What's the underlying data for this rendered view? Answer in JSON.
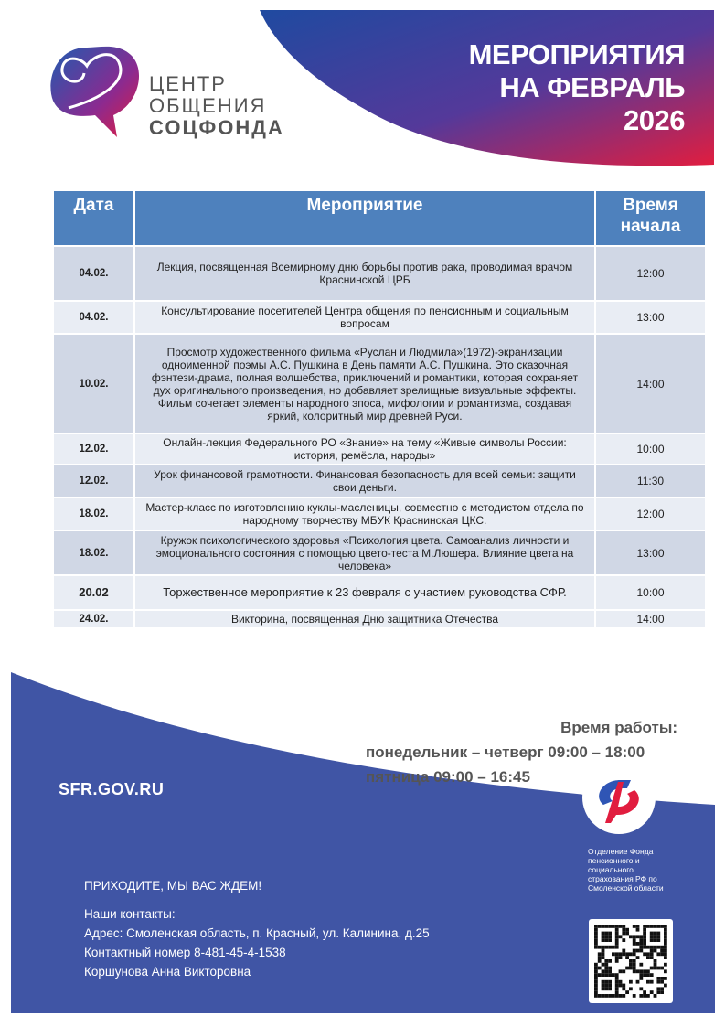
{
  "header": {
    "logo_lines": [
      "ЦЕНТР",
      "ОБЩЕНИЯ",
      "СОЦФОНДА"
    ],
    "title_lines": [
      "МЕРОПРИЯТИЯ",
      "НА ФЕВРАЛЬ",
      "2026"
    ]
  },
  "table": {
    "columns": [
      "Дата",
      "Мероприятие",
      "Время начала"
    ],
    "rows": [
      {
        "date": "04.02.",
        "event": "Лекция, посвященная Всемирному дню борьбы против рака, проводимая врачом Краснинской ЦРБ",
        "time": "12:00"
      },
      {
        "date": "04.02.",
        "event": "Консультирование посетителей Центра общения по пенсионным и социальным вопросам",
        "time": "13:00"
      },
      {
        "date": "10.02.",
        "event": "Просмотр художественного фильма «Руслан и Людмила»(1972)-экранизации одноименной поэмы А.С. Пушкина в День памяти А.С. Пушкина. Это сказочная фэнтези-драма, полная волшебства, приключений и романтики, которая сохраняет дух оригинального произведения, но добавляет зрелищные визуальные эффекты. Фильм сочетает элементы народного эпоса, мифологии и романтизма, создавая яркий, колоритный мир древней Руси.",
        "time": "14:00"
      },
      {
        "date": "12.02.",
        "event": "Онлайн-лекция Федерального РО «Знание» на тему «Живые символы России: история, ремёсла, народы»",
        "time": "10:00"
      },
      {
        "date": "12.02.",
        "event": "Урок финансовой грамотности. Финансовая безопасность для всей семьи: защити свои деньги.",
        "time": "11:30"
      },
      {
        "date": "18.02.",
        "event": "Мастер-класс по изготовлению куклы-масленицы, совместно с методистом отдела по народному творчеству МБУК Краснинская ЦКС.",
        "time": "12:00"
      },
      {
        "date": "18.02.",
        "event": "Кружок психологического здоровья «Психология цвета. Самоанализ личности и эмоционального состояния с помощью цвето-теста М.Люшера. Влияние цвета на человека»",
        "time": "13:00"
      },
      {
        "date": "20.02",
        "event": "Торжественное мероприятие к 23 февраля с участием руководства СФР.",
        "time": "10:00"
      },
      {
        "date": "24.02.",
        "event": "Викторина, посвященная Дню защитника Отечества",
        "time": "14:00"
      }
    ]
  },
  "hours": {
    "title": "Время работы:",
    "line1": "понедельник – четверг 09:00 – 18:00",
    "line2": "пятница 09:00 – 16:45"
  },
  "footer": {
    "site": "SFR.GOV.RU",
    "org": "Отделение Фонда пенсионного и социального страхования РФ по Смоленской области",
    "invite": "ПРИХОДИТЕ, МЫ ВАС ЖДЕМ!",
    "contacts_label": "Наши контакты:",
    "address": "Адрес: Смоленская область, п. Красный, ул. Калинина, д.25",
    "phone": "Контактный номер 8-481-45-4-1538",
    "person": "Коршунова Анна Викторовна"
  },
  "colors": {
    "header_blue": "#4e81bd",
    "footer_blue": "#4055a5",
    "gradient_start": "#2a4aa0",
    "gradient_end": "#e11d3f"
  }
}
